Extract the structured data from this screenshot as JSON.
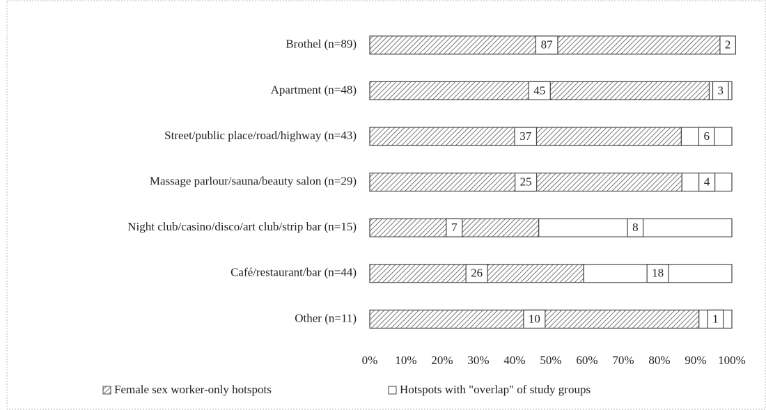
{
  "chart_data": {
    "type": "bar",
    "orientation": "horizontal",
    "stack": "percent",
    "categories": [
      "Brothel (n=89)",
      "Apartment (n=48)",
      "Street/public place/road/highway (n=43)",
      "Massage parlour/sauna/beauty salon (n=29)",
      "Night club/casino/disco/art club/strip bar (n=15)",
      "Café/restaurant/bar (n=44)",
      "Other (n=11)"
    ],
    "series": [
      {
        "name": "Female sex worker-only hotspots",
        "color": "hatch",
        "values": [
          87,
          45,
          37,
          25,
          7,
          26,
          10
        ]
      },
      {
        "name": "Hotspots with \"overlap\" of study groups",
        "color": "#ffffff",
        "values": [
          2,
          3,
          6,
          4,
          8,
          18,
          1
        ]
      }
    ],
    "xlim": [
      0,
      100
    ],
    "xticks": [
      {
        "value": 0,
        "label": "0%"
      },
      {
        "value": 10,
        "label": "10%"
      },
      {
        "value": 20,
        "label": "20%"
      },
      {
        "value": 30,
        "label": "30%"
      },
      {
        "value": 40,
        "label": "40%"
      },
      {
        "value": 50,
        "label": "50%"
      },
      {
        "value": 60,
        "label": "60%"
      },
      {
        "value": 70,
        "label": "70%"
      },
      {
        "value": 80,
        "label": "80%"
      },
      {
        "value": 90,
        "label": "90%"
      },
      {
        "value": 100,
        "label": "100%"
      }
    ],
    "legend": "bottom"
  }
}
